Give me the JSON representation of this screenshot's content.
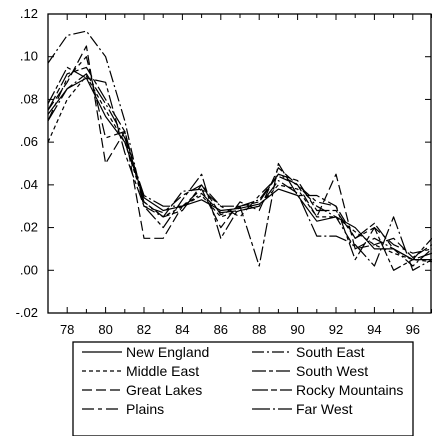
{
  "chart_data": {
    "type": "line",
    "title": "",
    "xlabel": "",
    "ylabel": "",
    "x": [
      77,
      78,
      79,
      80,
      81,
      82,
      83,
      84,
      85,
      86,
      87,
      88,
      89,
      90,
      91,
      92,
      93,
      94,
      95,
      96,
      97
    ],
    "xlim": [
      77,
      97
    ],
    "ylim": [
      -0.02,
      0.12
    ],
    "x_ticks": [
      78,
      80,
      82,
      84,
      86,
      88,
      90,
      92,
      94,
      96
    ],
    "x_tick_labels": [
      "78",
      "80",
      "82",
      "84",
      "86",
      "88",
      "90",
      "92",
      "94",
      "96"
    ],
    "y_ticks": [
      -0.02,
      0.0,
      0.02,
      0.04,
      0.06,
      0.08,
      0.1,
      0.12
    ],
    "y_tick_labels": [
      "-.02",
      ".00",
      ".02",
      ".04",
      ".06",
      ".08",
      ".10",
      ".12"
    ],
    "grid": false,
    "legend_position": "bottom",
    "series": [
      {
        "name": "New England",
        "dash": "",
        "values": [
          0.073,
          0.085,
          0.09,
          0.072,
          0.06,
          0.034,
          0.028,
          0.03,
          0.033,
          0.028,
          0.029,
          0.031,
          0.038,
          0.035,
          0.023,
          0.025,
          0.02,
          0.01,
          0.01,
          0.005,
          0.005
        ]
      },
      {
        "name": "Middle East",
        "dash": "4,3",
        "values": [
          0.06,
          0.08,
          0.091,
          0.075,
          0.06,
          0.032,
          0.025,
          0.03,
          0.035,
          0.025,
          0.028,
          0.03,
          0.04,
          0.038,
          0.025,
          0.025,
          0.018,
          0.012,
          0.008,
          0.005,
          0.004
        ]
      },
      {
        "name": "Great Lakes",
        "dash": "10,4",
        "values": [
          0.075,
          0.088,
          0.105,
          0.05,
          0.065,
          0.015,
          0.015,
          0.03,
          0.038,
          0.02,
          0.032,
          0.028,
          0.048,
          0.04,
          0.025,
          0.045,
          0.01,
          0.012,
          0.015,
          0.006,
          0.012
        ]
      },
      {
        "name": "Plains",
        "dash": "12,4,4,4",
        "values": [
          0.07,
          0.09,
          0.1,
          0.062,
          0.065,
          0.03,
          0.027,
          0.035,
          0.04,
          0.03,
          0.025,
          0.035,
          0.044,
          0.04,
          0.032,
          0.03,
          0.015,
          0.02,
          0.012,
          0.008,
          0.01
        ]
      },
      {
        "name": "South East",
        "dash": "12,3,2,3",
        "values": [
          0.097,
          0.11,
          0.112,
          0.1,
          0.07,
          0.03,
          0.025,
          0.037,
          0.038,
          0.03,
          0.03,
          0.033,
          0.045,
          0.04,
          0.03,
          0.025,
          0.01,
          0.015,
          0.01,
          0.002,
          0.01
        ]
      },
      {
        "name": "South West",
        "dash": "14,3,4,3",
        "values": [
          0.078,
          0.095,
          0.09,
          0.088,
          0.055,
          0.03,
          0.02,
          0.033,
          0.045,
          0.015,
          0.03,
          0.002,
          0.05,
          0.035,
          0.035,
          0.03,
          0.005,
          0.02,
          0.0,
          0.005,
          0.015
        ]
      },
      {
        "name": "Rocky Mountains",
        "dash": "16,3,6,3",
        "values": [
          0.075,
          0.092,
          0.095,
          0.08,
          0.065,
          0.032,
          0.025,
          0.028,
          0.04,
          0.026,
          0.03,
          0.032,
          0.045,
          0.042,
          0.028,
          0.028,
          0.015,
          0.022,
          0.01,
          0.005,
          0.008
        ]
      },
      {
        "name": "Far West",
        "dash": "18,3,2,3",
        "values": [
          0.07,
          0.085,
          0.092,
          0.078,
          0.062,
          0.035,
          0.03,
          0.03,
          0.036,
          0.027,
          0.028,
          0.03,
          0.042,
          0.036,
          0.016,
          0.016,
          0.012,
          0.002,
          0.025,
          0.0,
          0.005
        ]
      }
    ]
  }
}
